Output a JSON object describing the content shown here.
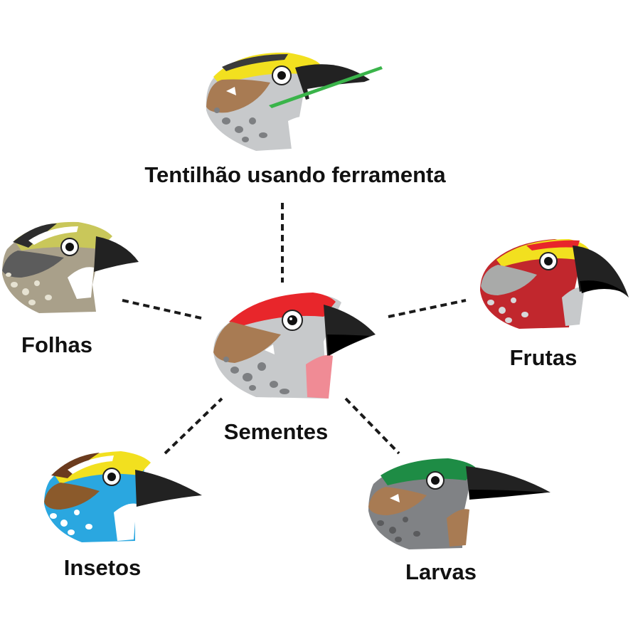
{
  "labels": {
    "center": "Sementes",
    "top": "Tentilhão usando ferramenta",
    "left": "Folhas",
    "right": "Frutas",
    "bottom_left": "Insetos",
    "bottom_right": "Larvas"
  },
  "colors": {
    "red_cap": "#e8262b",
    "yellow_cap": "#f2e01f",
    "olive_cap": "#c9c75a",
    "green_cap": "#1e8c45",
    "brown_cheek": "#a87b53",
    "gray_body": "#c7c9cb",
    "tan_body": "#a9a08a",
    "crimson_body": "#c1272d",
    "blue_body": "#2aa7e0",
    "dark_gray_body": "#808285",
    "beak": "#222222",
    "twig": "#3ab44a",
    "connector": "#1a1a1a"
  },
  "icons": [
    "finch-seeds-icon",
    "finch-tool-icon",
    "finch-leaves-icon",
    "finch-fruit-icon",
    "finch-insects-icon",
    "finch-larvae-icon"
  ]
}
